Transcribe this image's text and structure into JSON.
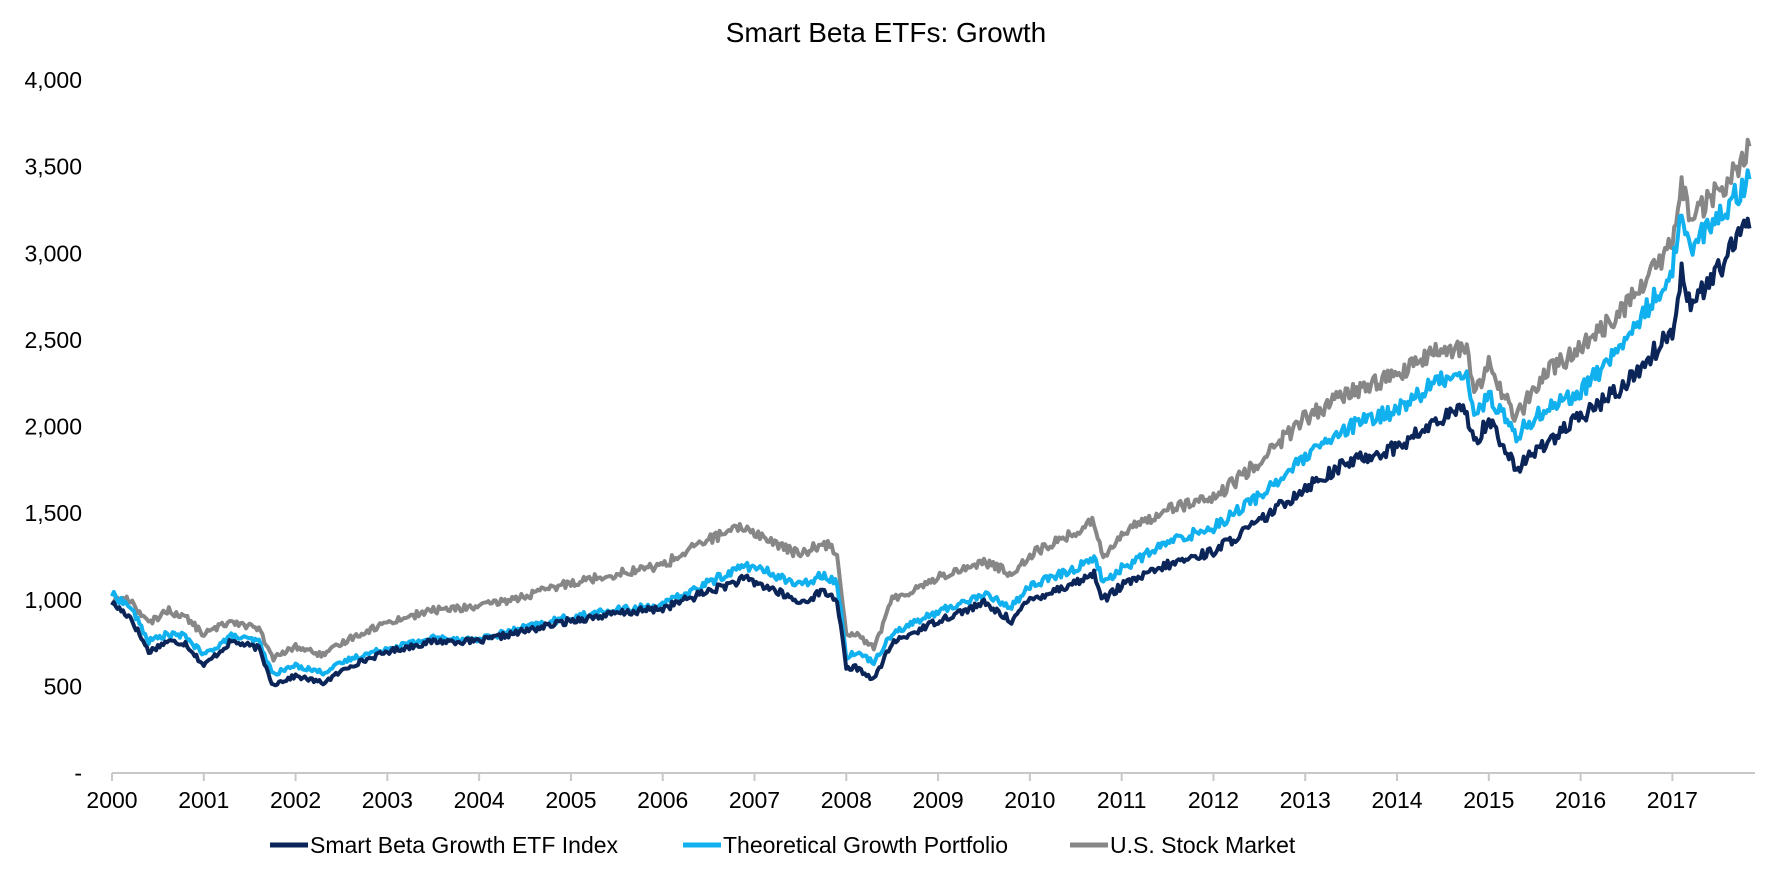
{
  "chart_data": {
    "type": "line",
    "title": "Smart Beta ETFs: Growth",
    "xlabel": "",
    "ylabel": "",
    "ylim": [
      0,
      4000
    ],
    "yticks": [
      {
        "value": 0,
        "label": "-"
      },
      {
        "value": 500,
        "label": "500"
      },
      {
        "value": 1000,
        "label": "1,000"
      },
      {
        "value": 1500,
        "label": "1,500"
      },
      {
        "value": 2000,
        "label": "2,000"
      },
      {
        "value": 2500,
        "label": "2,500"
      },
      {
        "value": 3000,
        "label": "3,000"
      },
      {
        "value": 3500,
        "label": "3,500"
      },
      {
        "value": 4000,
        "label": "4,000"
      }
    ],
    "xlim": [
      2000,
      2017.9
    ],
    "xticks": [
      "2000",
      "2001",
      "2002",
      "2003",
      "2004",
      "2005",
      "2006",
      "2007",
      "2008",
      "2009",
      "2010",
      "2011",
      "2012",
      "2013",
      "2014",
      "2015",
      "2016",
      "2017"
    ],
    "grid": false,
    "legend_position": "bottom",
    "series": [
      {
        "name": "Smart Beta Growth ETF Index",
        "color": "#0b2559",
        "x": [
          2000.0,
          2000.2,
          2000.4,
          2000.6,
          2000.8,
          2001.0,
          2001.3,
          2001.6,
          2001.75,
          2002.0,
          2002.3,
          2002.6,
          2003.0,
          2003.5,
          2004.0,
          2004.5,
          2005.0,
          2005.5,
          2006.0,
          2006.5,
          2006.9,
          2007.2,
          2007.5,
          2007.75,
          2007.9,
          2008.0,
          2008.1,
          2008.3,
          2008.5,
          2009.0,
          2009.5,
          2009.8,
          2010.0,
          2010.5,
          2010.7,
          2010.8,
          2011.0,
          2011.5,
          2012.0,
          2012.5,
          2013.0,
          2013.5,
          2014.0,
          2014.5,
          2014.75,
          2014.85,
          2015.0,
          2015.3,
          2015.6,
          2016.0,
          2016.5,
          2017.0,
          2017.1,
          2017.2,
          2017.5,
          2017.85
        ],
        "values": [
          980,
          900,
          700,
          760,
          750,
          620,
          760,
          720,
          510,
          560,
          520,
          620,
          700,
          760,
          760,
          820,
          880,
          920,
          950,
          1050,
          1120,
          1060,
          980,
          1050,
          1000,
          600,
          610,
          540,
          750,
          880,
          980,
          880,
          1000,
          1100,
          1150,
          1000,
          1080,
          1200,
          1280,
          1450,
          1650,
          1800,
          1880,
          2050,
          2100,
          1900,
          2050,
          1750,
          1900,
          2050,
          2250,
          2550,
          2900,
          2700,
          2900,
          3200
        ]
      },
      {
        "name": "Theoretical Growth Portfolio",
        "color": "#11b0ee",
        "x": [
          2000.0,
          2000.2,
          2000.4,
          2000.6,
          2000.8,
          2001.0,
          2001.3,
          2001.6,
          2001.75,
          2002.0,
          2002.3,
          2002.6,
          2003.0,
          2003.5,
          2004.0,
          2004.5,
          2005.0,
          2005.5,
          2006.0,
          2006.5,
          2006.9,
          2007.2,
          2007.5,
          2007.75,
          2007.9,
          2008.0,
          2008.1,
          2008.3,
          2008.5,
          2009.0,
          2009.5,
          2009.8,
          2010.0,
          2010.5,
          2010.7,
          2010.8,
          2011.0,
          2011.5,
          2012.0,
          2012.5,
          2013.0,
          2013.5,
          2014.0,
          2014.5,
          2014.75,
          2014.85,
          2015.0,
          2015.3,
          2015.6,
          2016.0,
          2016.5,
          2017.0,
          2017.1,
          2017.2,
          2017.5,
          2017.85
        ],
        "values": [
          1030,
          960,
          760,
          800,
          790,
          680,
          790,
          760,
          570,
          620,
          580,
          660,
          720,
          780,
          770,
          840,
          900,
          940,
          970,
          1100,
          1200,
          1150,
          1080,
          1150,
          1100,
          670,
          700,
          640,
          810,
          930,
          1030,
          960,
          1080,
          1180,
          1250,
          1100,
          1180,
          1330,
          1420,
          1600,
          1820,
          2000,
          2100,
          2280,
          2320,
          2050,
          2180,
          1950,
          2100,
          2200,
          2500,
          2900,
          3250,
          3050,
          3200,
          3450
        ]
      },
      {
        "name": "U.S. Stock Market",
        "color": "#878787",
        "x": [
          2000.0,
          2000.2,
          2000.4,
          2000.6,
          2000.8,
          2001.0,
          2001.3,
          2001.6,
          2001.75,
          2002.0,
          2002.3,
          2002.6,
          2003.0,
          2003.5,
          2004.0,
          2004.5,
          2005.0,
          2005.5,
          2006.0,
          2006.5,
          2006.9,
          2007.2,
          2007.5,
          2007.75,
          2007.9,
          2008.0,
          2008.1,
          2008.3,
          2008.5,
          2009.0,
          2009.5,
          2009.8,
          2010.0,
          2010.5,
          2010.7,
          2010.8,
          2011.0,
          2011.5,
          2012.0,
          2012.5,
          2013.0,
          2013.5,
          2014.0,
          2014.5,
          2014.75,
          2014.85,
          2015.0,
          2015.3,
          2015.6,
          2016.0,
          2016.5,
          2017.0,
          2017.1,
          2017.2,
          2017.5,
          2017.85
        ],
        "values": [
          1000,
          1000,
          860,
          940,
          900,
          800,
          880,
          830,
          660,
          730,
          680,
          780,
          870,
          940,
          960,
          1020,
          1100,
          1150,
          1200,
          1350,
          1420,
          1330,
          1260,
          1330,
          1280,
          800,
          810,
          720,
          1000,
          1130,
          1220,
          1150,
          1260,
          1390,
          1450,
          1250,
          1380,
          1530,
          1580,
          1800,
          2050,
          2200,
          2300,
          2450,
          2450,
          2200,
          2350,
          2050,
          2300,
          2450,
          2700,
          3050,
          3400,
          3200,
          3350,
          3600
        ]
      }
    ]
  }
}
